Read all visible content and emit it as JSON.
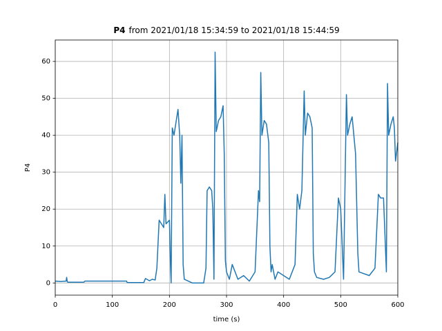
{
  "chart_data": {
    "type": "line",
    "title_name": "P4",
    "title_range": "from 2021/01/18 15:34:59 to 2021/01/18 15:44:59",
    "xlabel": "time (s)",
    "ylabel": "P4",
    "color": "#1f77b4",
    "grid": true,
    "xlim": [
      0,
      600
    ],
    "xticks": [
      0,
      100,
      200,
      300,
      400,
      500,
      600
    ],
    "ylim": [
      -3.3,
      65.8
    ],
    "yticks": [
      0,
      10,
      20,
      30,
      40,
      50,
      60
    ],
    "x": [
      0,
      10,
      19,
      20,
      21,
      22,
      50,
      52,
      90,
      125,
      126,
      155,
      158,
      165,
      170,
      175,
      178,
      182,
      186,
      190,
      192,
      194,
      200,
      202,
      203,
      205,
      208,
      212,
      215,
      218,
      220,
      222,
      224,
      226,
      240,
      260,
      264,
      266,
      270,
      274,
      276,
      278,
      280,
      282,
      286,
      290,
      294,
      296,
      298,
      300,
      305,
      310,
      320,
      330,
      340,
      350,
      356,
      358,
      360,
      362,
      366,
      370,
      374,
      376,
      378,
      380,
      385,
      390,
      410,
      420,
      424,
      428,
      432,
      436,
      438,
      442,
      446,
      450,
      452,
      454,
      458,
      470,
      480,
      490,
      496,
      500,
      505,
      510,
      512,
      516,
      520,
      526,
      530,
      532,
      550,
      560,
      566,
      570,
      575,
      580,
      582,
      584,
      588,
      592,
      594,
      596,
      600
    ],
    "values": [
      0.5,
      0.4,
      0.5,
      1.5,
      0.4,
      0.2,
      0.2,
      0.5,
      0.5,
      0.5,
      0.1,
      0.1,
      1.2,
      0.6,
      1.0,
      0.8,
      4,
      17,
      16,
      15,
      24,
      16,
      17,
      4,
      0,
      42,
      40,
      44,
      47,
      40,
      27,
      40,
      5,
      1,
      0,
      0,
      4,
      25,
      26,
      25,
      20,
      1,
      62.5,
      41,
      44,
      45,
      48,
      35,
      6,
      3,
      1,
      5,
      1,
      2,
      0.5,
      3,
      25,
      22,
      57,
      40,
      44,
      43,
      38,
      10,
      3,
      5,
      1,
      3,
      1,
      5,
      24,
      20,
      25,
      52,
      40,
      46,
      45,
      42,
      8,
      3,
      1.5,
      1,
      1.5,
      3,
      23,
      20,
      1,
      51,
      40,
      43,
      45,
      35,
      8,
      3,
      2,
      4,
      24,
      23,
      23,
      3,
      54,
      40,
      43,
      45,
      42,
      33,
      38
    ]
  }
}
